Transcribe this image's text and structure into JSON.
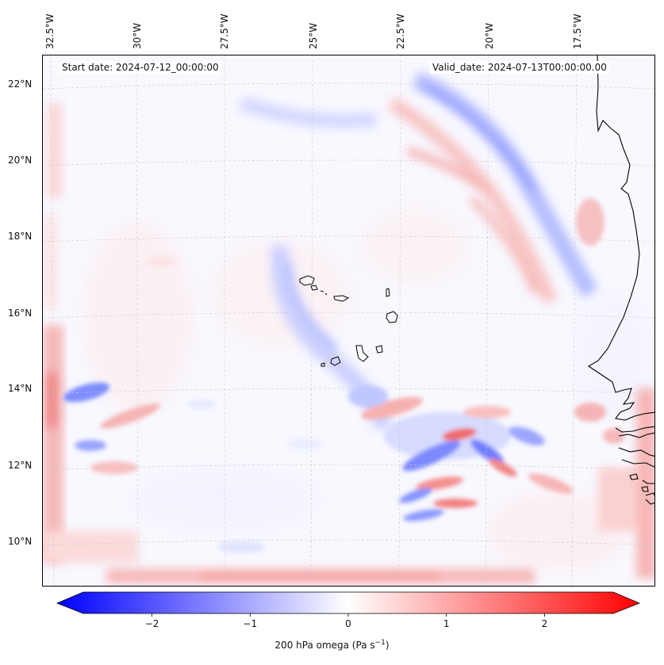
{
  "map": {
    "title_left": "Start date: 2024-07-12_00:00:00",
    "title_right": "Valid_date: 2024-07-13T00:00:00.00",
    "variable": "200 hPa omega",
    "lon_labels": [
      "32.5°W",
      "30°W",
      "27.5°W",
      "25°W",
      "22.5°W",
      "20°W",
      "17.5°W"
    ],
    "lat_labels": [
      "22°N",
      "20°N",
      "18°N",
      "16°N",
      "14°N",
      "12°N",
      "10°N"
    ],
    "extent": {
      "lon_min": -32.5,
      "lon_max": -15.0,
      "lat_min": 8.8,
      "lat_max": 22.7
    }
  },
  "colorbar": {
    "ticks": [
      "−2",
      "−1",
      "0",
      "1",
      "2"
    ],
    "range": [
      -2.7,
      2.7
    ],
    "cmap": "bwr",
    "label_prefix": "200 hPa omega (Pa s",
    "label_exponent": "−1",
    "label_suffix": ")"
  },
  "colors": {
    "negative": "#0000ff",
    "neutral": "#ffffff",
    "positive": "#ff0000",
    "coast": "#000000",
    "grid": "#b0b0b0"
  }
}
